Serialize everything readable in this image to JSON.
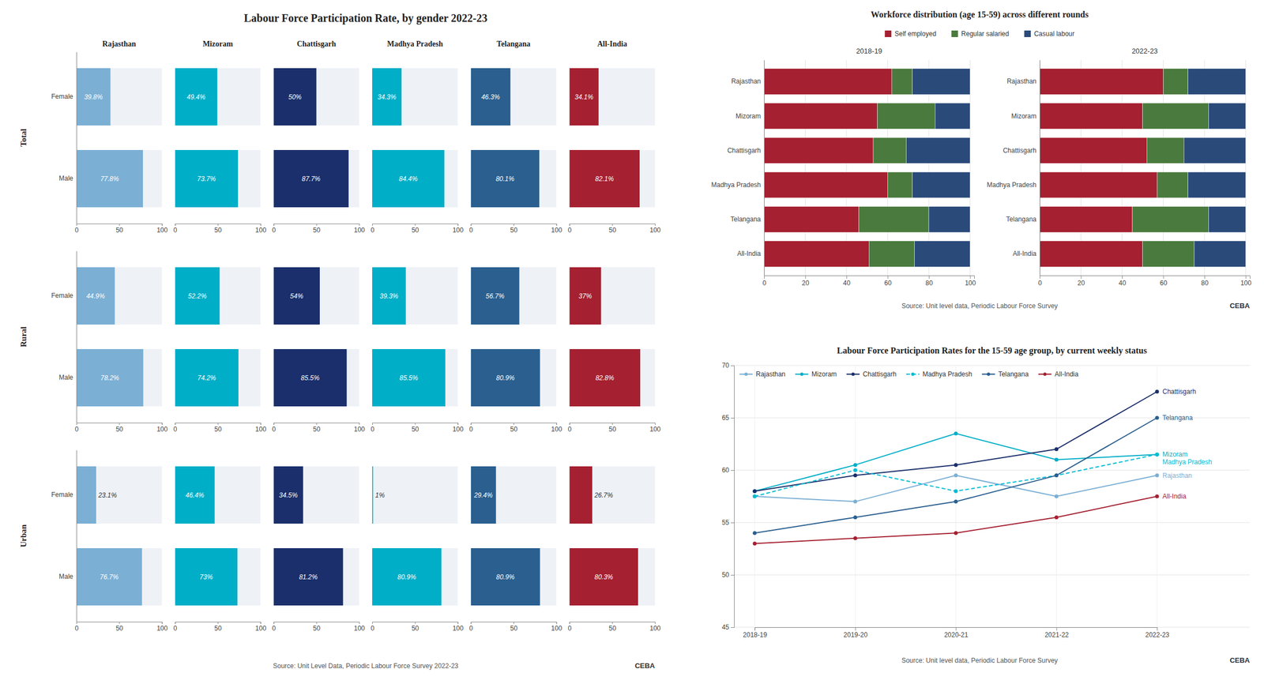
{
  "chart_data": [
    {
      "type": "bar",
      "orientation": "horizontal",
      "title": "Labour Force Participation Rate, by gender 2022-23",
      "annotations": [
        "Source: Unit Level Data, Periodic Labour Force Survey 2022-23",
        "CE",
        "B",
        "A"
      ],
      "charts": [
        {
          "type": "bar",
          "orientation": "horizontal",
          "title": "Rajasthan",
          "ylabel": "Total",
          "categories": [
            "Female",
            "Male"
          ],
          "values": [
            39.8,
            77.8
          ],
          "value_labels": [
            "39.8%",
            "77.8%"
          ],
          "color": "#7bafd4",
          "xlim": [
            0,
            100
          ],
          "xticks": [
            0,
            50,
            100
          ],
          "data_labels": true
        },
        {
          "type": "bar",
          "orientation": "horizontal",
          "title": "Mizoram",
          "categories": [
            null,
            null
          ],
          "values": [
            49.4,
            73.7
          ],
          "value_labels": [
            "49.4%",
            "73.7%"
          ],
          "color": "#00aec7",
          "xlim": [
            0,
            100
          ],
          "xticks": [
            0,
            50,
            100
          ],
          "data_labels": true
        },
        {
          "type": "bar",
          "orientation": "horizontal",
          "title": "Chattisgarh",
          "categories": [
            null,
            null
          ],
          "values": [
            50,
            87.7
          ],
          "value_labels": [
            "50%",
            "87.7%"
          ],
          "color": "#1a2f6b",
          "xlim": [
            0,
            100
          ],
          "xticks": [
            0,
            50,
            100
          ],
          "data_labels": true
        },
        {
          "type": "bar",
          "orientation": "horizontal",
          "title": "Madhya Pradesh",
          "categories": [
            null,
            null
          ],
          "values": [
            34.3,
            84.4
          ],
          "value_labels": [
            "34.3%",
            "84.4%"
          ],
          "color": "#00aec7",
          "xlim": [
            0,
            100
          ],
          "xticks": [
            0,
            50,
            100
          ],
          "data_labels": true
        },
        {
          "type": "bar",
          "orientation": "horizontal",
          "title": "Telangana",
          "categories": [
            null,
            null
          ],
          "values": [
            46.3,
            80.1
          ],
          "value_labels": [
            "46.3%",
            "80.1%"
          ],
          "color": "#2a5f8f",
          "xlim": [
            0,
            100
          ],
          "xticks": [
            0,
            50,
            100
          ],
          "data_labels": true
        },
        {
          "type": "bar",
          "orientation": "horizontal",
          "title": "All-India",
          "categories": [
            null,
            null
          ],
          "values": [
            34.1,
            82.1
          ],
          "value_labels": [
            "34.1%",
            "82.1%"
          ],
          "color": "#a52030",
          "xlim": [
            0,
            100
          ],
          "xticks": [
            0,
            50,
            100
          ],
          "data_labels": true
        },
        {
          "type": "bar",
          "orientation": "horizontal",
          "ylabel": "Rural",
          "categories": [
            "Female",
            "Male"
          ],
          "values": [
            44.9,
            78.2
          ],
          "value_labels": [
            "44.9%",
            "78.2%"
          ],
          "color": "#7bafd4",
          "xlim": [
            0,
            100
          ],
          "xticks": [
            0,
            50,
            100
          ],
          "data_labels": true
        },
        {
          "type": "bar",
          "orientation": "horizontal",
          "categories": [
            null,
            null
          ],
          "values": [
            52.2,
            74.2
          ],
          "value_labels": [
            "52.2%",
            "74.2%"
          ],
          "color": "#00aec7",
          "xlim": [
            0,
            100
          ],
          "xticks": [
            0,
            50,
            100
          ],
          "data_labels": true
        },
        {
          "type": "bar",
          "orientation": "horizontal",
          "categories": [
            null,
            null
          ],
          "values": [
            54,
            85.5
          ],
          "value_labels": [
            "54%",
            "85.5%"
          ],
          "color": "#1a2f6b",
          "xlim": [
            0,
            100
          ],
          "xticks": [
            0,
            50,
            100
          ],
          "data_labels": true
        },
        {
          "type": "bar",
          "orientation": "horizontal",
          "categories": [
            null,
            null
          ],
          "values": [
            39.3,
            85.5
          ],
          "value_labels": [
            "39.3%",
            "85.5%"
          ],
          "color": "#00aec7",
          "xlim": [
            0,
            100
          ],
          "xticks": [
            0,
            50,
            100
          ],
          "data_labels": true
        },
        {
          "type": "bar",
          "orientation": "horizontal",
          "categories": [
            null,
            null
          ],
          "values": [
            56.7,
            80.9
          ],
          "value_labels": [
            "56.7%",
            "80.9%"
          ],
          "color": "#2a5f8f",
          "xlim": [
            0,
            100
          ],
          "xticks": [
            0,
            50,
            100
          ],
          "data_labels": true
        },
        {
          "type": "bar",
          "orientation": "horizontal",
          "categories": [
            null,
            null
          ],
          "values": [
            37,
            82.8
          ],
          "value_labels": [
            "37%",
            "82.8%"
          ],
          "color": "#a52030",
          "xlim": [
            0,
            100
          ],
          "xticks": [
            0,
            50,
            100
          ],
          "data_labels": true
        },
        {
          "type": "bar",
          "orientation": "horizontal",
          "ylabel": "Urban",
          "categories": [
            "Female",
            "Male"
          ],
          "values": [
            23.1,
            76.7
          ],
          "value_labels": [
            "23.1%",
            "76.7%"
          ],
          "color": "#7bafd4",
          "xlim": [
            0,
            100
          ],
          "xticks": [
            0,
            50,
            100
          ],
          "data_labels": true
        },
        {
          "type": "bar",
          "orientation": "horizontal",
          "categories": [
            null,
            null
          ],
          "values": [
            46.4,
            73
          ],
          "value_labels": [
            "46.4%",
            "73%"
          ],
          "color": "#00aec7",
          "xlim": [
            0,
            100
          ],
          "xticks": [
            0,
            50,
            100
          ],
          "data_labels": true
        },
        {
          "type": "bar",
          "orientation": "horizontal",
          "categories": [
            null,
            null
          ],
          "values": [
            34.5,
            81.2
          ],
          "value_labels": [
            "34.5%",
            "81.2%"
          ],
          "color": "#1a2f6b",
          "xlim": [
            0,
            100
          ],
          "xticks": [
            0,
            50,
            100
          ],
          "data_labels": true
        },
        {
          "type": "bar",
          "orientation": "horizontal",
          "categories": [
            null,
            null
          ],
          "values": [
            1,
            80.9
          ],
          "value_labels": [
            "1%",
            "80.9%"
          ],
          "color": "#00aec7",
          "xlim": [
            0,
            100
          ],
          "xticks": [
            0,
            50,
            100
          ],
          "data_labels": true
        },
        {
          "type": "bar",
          "orientation": "horizontal",
          "categories": [
            null,
            null
          ],
          "values": [
            29.4,
            80.9
          ],
          "value_labels": [
            "29.4%",
            "80.9%"
          ],
          "color": "#2a5f8f",
          "xlim": [
            0,
            100
          ],
          "xticks": [
            0,
            50,
            100
          ],
          "data_labels": true
        },
        {
          "type": "bar",
          "orientation": "horizontal",
          "categories": [
            null,
            null
          ],
          "values": [
            26.7,
            80.3
          ],
          "value_labels": [
            "26.7%",
            "80.3%"
          ],
          "color": "#a52030",
          "xlim": [
            0,
            100
          ],
          "xticks": [
            0,
            50,
            100
          ],
          "data_labels": true
        }
      ]
    },
    {
      "type": "bar",
      "orientation": "horizontal",
      "stacked": true,
      "title": "Workforce distribution (age 15-59) across different rounds",
      "legend": "top",
      "series": [
        {
          "name": "Self employed",
          "color": "#a52030"
        },
        {
          "name": "Regular salaried",
          "color": "#4a7a3d"
        },
        {
          "name": "Casual labour",
          "color": "#2a4a7a"
        }
      ],
      "annotations": [
        "Source: Unit level data, Periodic Labour Force Survey",
        "CE",
        "B",
        "A"
      ],
      "charts": [
        {
          "type": "bar",
          "orientation": "horizontal",
          "stacked": true,
          "subtitle": "2018-19",
          "categories": [
            "Rajasthan",
            "Mizoram",
            "Chattisgarh",
            "Madhya Pradesh",
            "Telangana",
            "All-India"
          ],
          "series": [
            {
              "values": [
                62,
                55,
                53,
                60,
                46,
                51
              ]
            },
            {
              "values": [
                10,
                28,
                16,
                12,
                34,
                22
              ]
            },
            {
              "values": [
                28,
                17,
                31,
                28,
                20,
                27
              ]
            }
          ],
          "xlim": [
            0,
            102
          ],
          "xticks": [
            0,
            20,
            40,
            60,
            80,
            100
          ],
          "grid": true
        },
        {
          "type": "bar",
          "orientation": "horizontal",
          "stacked": true,
          "subtitle": "2022-23",
          "categories": [
            "Rajasthan",
            "Mizoram",
            "Chattisgarh",
            "Madhya Pradesh",
            "Telangana",
            "All-India"
          ],
          "series": [
            {
              "values": [
                60,
                50,
                52,
                57,
                45,
                50
              ]
            },
            {
              "values": [
                12,
                32,
                18,
                15,
                37,
                25
              ]
            },
            {
              "values": [
                28,
                18,
                30,
                28,
                18,
                25
              ]
            }
          ],
          "xlim": [
            0,
            102
          ],
          "xticks": [
            0,
            20,
            40,
            60,
            80,
            100
          ],
          "grid": true
        }
      ]
    },
    {
      "type": "line",
      "title": "Labour Force Participation Rates for the 15-59 age group, by current weekly status",
      "categories": [
        "2018-19",
        "2019-20",
        "2020-21",
        "2021-22",
        "2022-23"
      ],
      "series": [
        {
          "name": "Rajasthan",
          "color": "#7bafd4",
          "line_style": "solid",
          "marker": "circle",
          "values": [
            57.5,
            57.0,
            59.5,
            57.5,
            59.5
          ]
        },
        {
          "name": "Mizoram",
          "color": "#00aec7",
          "line_style": "solid",
          "marker": "circle",
          "values": [
            58.0,
            60.5,
            63.5,
            61.0,
            61.5
          ]
        },
        {
          "name": "Chattisgarh",
          "color": "#1a2f6b",
          "line_style": "solid",
          "marker": "circle",
          "values": [
            58.0,
            59.5,
            60.5,
            62.0,
            67.5
          ]
        },
        {
          "name": "Madhya Pradesh",
          "color": "#00bcd4",
          "line_style": "dashed",
          "marker": "circle",
          "values": [
            57.5,
            60.0,
            58.0,
            59.5,
            61.5
          ]
        },
        {
          "name": "Telangana",
          "color": "#2a5f8f",
          "line_style": "solid",
          "marker": "circle",
          "values": [
            54.0,
            55.5,
            57.0,
            59.5,
            65.0
          ]
        },
        {
          "name": "All-India",
          "color": "#a52030",
          "line_style": "solid",
          "marker": "circle",
          "values": [
            53.0,
            53.5,
            54.0,
            55.5,
            57.5
          ]
        }
      ],
      "ylim": [
        45,
        70
      ],
      "yticks": [
        45,
        50,
        55,
        60,
        65,
        70
      ],
      "grid": true,
      "legend": "upper left",
      "annotations": [
        "Source: Unit level data, Periodic Labour Force Survey",
        "CE",
        "B",
        "A"
      ]
    }
  ]
}
